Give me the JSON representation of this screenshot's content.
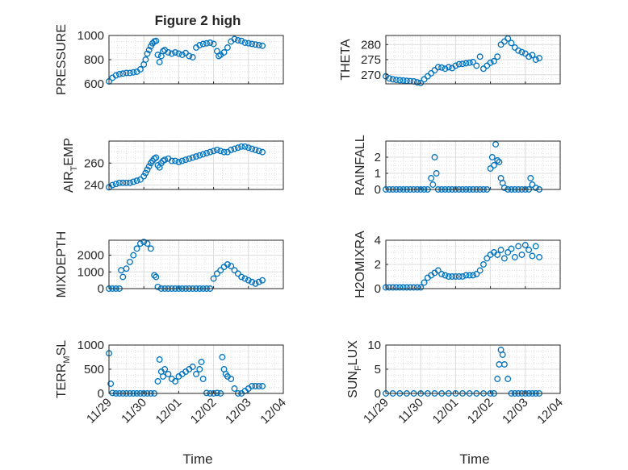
{
  "figure": {
    "title": "Figure 2 high",
    "marker_color": "#0072BD",
    "xlabel": "Time",
    "x_tick_labels": [
      "11/29",
      "11/30",
      "12/01",
      "12/02",
      "12/03",
      "12/04"
    ]
  },
  "chart_data": [
    {
      "type": "scatter",
      "panel": "pressure",
      "title": "Figure 2 high",
      "ylabel": "PRESSURE",
      "ylim": [
        600,
        1000
      ],
      "yticks": [
        600,
        800,
        1000
      ],
      "xlim": [
        0,
        5
      ],
      "grid": true,
      "x": [
        0,
        0.1,
        0.2,
        0.3,
        0.4,
        0.5,
        0.6,
        0.7,
        0.8,
        0.9,
        1.0,
        1.05,
        1.1,
        1.15,
        1.2,
        1.25,
        1.3,
        1.35,
        1.4,
        1.45,
        1.5,
        1.55,
        1.6,
        1.7,
        1.8,
        1.9,
        2.0,
        2.1,
        2.2,
        2.3,
        2.4,
        2.5,
        2.6,
        2.7,
        2.8,
        2.9,
        3.0,
        3.1,
        3.15,
        3.2,
        3.3,
        3.4,
        3.5,
        3.6,
        3.7,
        3.8,
        3.9,
        4.0,
        4.1,
        4.2,
        4.3,
        4.4
      ],
      "y": [
        620,
        650,
        670,
        680,
        685,
        690,
        690,
        695,
        700,
        720,
        760,
        800,
        850,
        880,
        910,
        935,
        950,
        955,
        840,
        780,
        830,
        870,
        880,
        860,
        850,
        860,
        850,
        840,
        855,
        830,
        820,
        900,
        920,
        930,
        935,
        940,
        930,
        870,
        830,
        840,
        860,
        900,
        950,
        970,
        960,
        955,
        940,
        935,
        930,
        925,
        920,
        915
      ]
    },
    {
      "type": "scatter",
      "panel": "theta",
      "ylabel": "THETA",
      "ylim": [
        267,
        283
      ],
      "yticks": [
        270,
        275,
        280
      ],
      "xlim": [
        0,
        5
      ],
      "grid": true,
      "x": [
        0,
        0.1,
        0.2,
        0.3,
        0.4,
        0.5,
        0.6,
        0.7,
        0.8,
        0.9,
        1.0,
        1.1,
        1.2,
        1.3,
        1.4,
        1.5,
        1.6,
        1.7,
        1.8,
        1.9,
        2.0,
        2.1,
        2.2,
        2.3,
        2.4,
        2.5,
        2.6,
        2.7,
        2.8,
        2.9,
        3.0,
        3.1,
        3.2,
        3.3,
        3.4,
        3.5,
        3.6,
        3.7,
        3.8,
        3.9,
        4.0,
        4.1,
        4.2,
        4.3,
        4.4
      ],
      "y": [
        269.5,
        268.8,
        268.5,
        268.3,
        268.2,
        268.1,
        268.0,
        267.9,
        267.8,
        267.5,
        267.3,
        268.5,
        269.5,
        270.5,
        271.5,
        272.5,
        272.4,
        272.0,
        272.5,
        272.2,
        273.0,
        273.5,
        273.6,
        273.8,
        274.0,
        274.2,
        273.0,
        276.0,
        272.0,
        273.0,
        274.0,
        274.5,
        276.0,
        280.0,
        281.0,
        282.0,
        280.5,
        279.0,
        278.0,
        277.5,
        277.0,
        276.0,
        276.5,
        275.0,
        275.5
      ]
    },
    {
      "type": "scatter",
      "panel": "air_temp",
      "ylabel": "AIR",
      "ylabel_sub": "T",
      "ylabel_tail": "EMP",
      "ylim": [
        236,
        280
      ],
      "yticks": [
        240,
        260
      ],
      "xlim": [
        0,
        5
      ],
      "grid": true,
      "x": [
        0,
        0.1,
        0.2,
        0.3,
        0.4,
        0.5,
        0.6,
        0.7,
        0.8,
        0.9,
        1.0,
        1.05,
        1.1,
        1.15,
        1.2,
        1.25,
        1.3,
        1.35,
        1.4,
        1.45,
        1.5,
        1.55,
        1.6,
        1.7,
        1.8,
        1.9,
        2.0,
        2.1,
        2.2,
        2.3,
        2.4,
        2.5,
        2.6,
        2.7,
        2.8,
        2.9,
        3.0,
        3.1,
        3.2,
        3.3,
        3.4,
        3.5,
        3.6,
        3.7,
        3.8,
        3.9,
        4.0,
        4.1,
        4.2,
        4.3,
        4.4
      ],
      "y": [
        238,
        240,
        241,
        242,
        242,
        242,
        242,
        243,
        244,
        245,
        248,
        251,
        254,
        257,
        260,
        262,
        264,
        265,
        258,
        256,
        260,
        262,
        263,
        264,
        262,
        262,
        261,
        262,
        263,
        264,
        265,
        266,
        267,
        268,
        269,
        270,
        271,
        272,
        271,
        270,
        270,
        272,
        273,
        274,
        275,
        275,
        274,
        273,
        272,
        271,
        270
      ]
    },
    {
      "type": "scatter",
      "panel": "rainfall",
      "ylabel": "RAINFALL",
      "ylim": [
        0,
        3
      ],
      "yticks": [
        0,
        1,
        2
      ],
      "xlim": [
        0,
        5
      ],
      "grid": true,
      "x": [
        0,
        0.1,
        0.2,
        0.3,
        0.4,
        0.5,
        0.6,
        0.7,
        0.8,
        0.9,
        1.0,
        1.1,
        1.2,
        1.3,
        1.35,
        1.4,
        1.45,
        1.5,
        1.6,
        1.7,
        1.8,
        1.9,
        2.0,
        2.1,
        2.2,
        2.3,
        2.4,
        2.5,
        2.6,
        2.7,
        2.8,
        2.9,
        3.0,
        3.05,
        3.1,
        3.15,
        3.2,
        3.25,
        3.3,
        3.35,
        3.4,
        3.5,
        3.6,
        3.7,
        3.8,
        3.9,
        4.0,
        4.1,
        4.15,
        4.2,
        4.3,
        4.4
      ],
      "y": [
        0,
        0,
        0,
        0,
        0,
        0,
        0,
        0,
        0,
        0,
        0,
        0,
        0,
        0.7,
        0.3,
        2.0,
        1.0,
        0,
        0,
        0,
        0,
        0,
        0,
        0,
        0,
        0,
        0,
        0,
        0,
        0,
        0,
        0,
        1.3,
        2.0,
        1.5,
        2.8,
        1.8,
        1.7,
        0.7,
        0.4,
        0.1,
        0,
        0,
        0,
        0,
        0,
        0,
        0,
        0.7,
        0.3,
        0.1,
        0
      ]
    },
    {
      "type": "scatter",
      "panel": "mixdepth",
      "ylabel": "MIXDEPTH",
      "ylim": [
        0,
        2900
      ],
      "yticks": [
        0,
        1000,
        2000
      ],
      "xlim": [
        0,
        5
      ],
      "grid": true,
      "x": [
        0,
        0.1,
        0.2,
        0.3,
        0.35,
        0.4,
        0.5,
        0.6,
        0.7,
        0.8,
        0.9,
        1.0,
        1.1,
        1.2,
        1.3,
        1.35,
        1.4,
        1.5,
        1.6,
        1.7,
        1.8,
        1.9,
        2.0,
        2.1,
        2.2,
        2.3,
        2.4,
        2.5,
        2.6,
        2.7,
        2.8,
        2.9,
        3.0,
        3.1,
        3.2,
        3.3,
        3.4,
        3.5,
        3.6,
        3.7,
        3.8,
        3.9,
        4.0,
        4.1,
        4.2,
        4.3,
        4.4
      ],
      "y": [
        0,
        0,
        0,
        0,
        1100,
        700,
        1200,
        1600,
        2000,
        2400,
        2700,
        2800,
        2700,
        2400,
        800,
        700,
        100,
        0,
        0,
        0,
        0,
        0,
        0,
        0,
        0,
        0,
        0,
        0,
        0,
        0,
        0,
        0,
        600,
        900,
        1100,
        1300,
        1450,
        1350,
        1100,
        900,
        700,
        600,
        500,
        400,
        300,
        400,
        500
      ]
    },
    {
      "type": "scatter",
      "panel": "h2omixra",
      "ylabel": "H2OMIXRA",
      "ylim": [
        0,
        4
      ],
      "yticks": [
        0,
        2,
        4
      ],
      "xlim": [
        0,
        5
      ],
      "grid": true,
      "x": [
        0,
        0.1,
        0.2,
        0.3,
        0.4,
        0.5,
        0.6,
        0.7,
        0.8,
        0.9,
        1.0,
        1.1,
        1.2,
        1.3,
        1.4,
        1.5,
        1.6,
        1.7,
        1.8,
        1.9,
        2.0,
        2.1,
        2.2,
        2.3,
        2.4,
        2.5,
        2.6,
        2.7,
        2.8,
        2.9,
        3.0,
        3.1,
        3.2,
        3.3,
        3.4,
        3.5,
        3.6,
        3.7,
        3.8,
        3.9,
        4.0,
        4.1,
        4.2,
        4.3,
        4.4
      ],
      "y": [
        0.1,
        0.1,
        0.1,
        0.1,
        0.1,
        0.1,
        0.1,
        0.1,
        0.1,
        0.1,
        0.1,
        0.5,
        0.9,
        1.1,
        1.3,
        1.5,
        1.2,
        1.1,
        1.0,
        1.0,
        1.0,
        1.0,
        1.0,
        1.1,
        1.1,
        1.1,
        1.2,
        1.5,
        2.0,
        2.5,
        2.8,
        3.0,
        2.8,
        3.2,
        2.5,
        3.0,
        3.3,
        2.6,
        3.5,
        2.8,
        3.6,
        3.2,
        2.7,
        3.5,
        2.6
      ]
    },
    {
      "type": "scatter",
      "panel": "terr_msl",
      "ylabel": "TERR",
      "ylabel_sub": "M",
      "ylabel_tail": "SL",
      "ylim": [
        0,
        1000
      ],
      "yticks": [
        0,
        500,
        1000
      ],
      "xlim": [
        0,
        5
      ],
      "grid": true,
      "x": [
        0,
        0.05,
        0.1,
        0.2,
        0.3,
        0.4,
        0.5,
        0.6,
        0.7,
        0.8,
        0.9,
        1.0,
        1.1,
        1.2,
        1.3,
        1.4,
        1.45,
        1.5,
        1.55,
        1.6,
        1.7,
        1.8,
        1.9,
        2.0,
        2.1,
        2.2,
        2.3,
        2.4,
        2.5,
        2.6,
        2.65,
        2.7,
        2.8,
        2.9,
        3.0,
        3.1,
        3.2,
        3.25,
        3.3,
        3.35,
        3.4,
        3.5,
        3.6,
        3.7,
        3.8,
        3.9,
        4.0,
        4.1,
        4.2,
        4.3,
        4.4
      ],
      "y": [
        830,
        200,
        10,
        0,
        0,
        0,
        0,
        0,
        0,
        0,
        0,
        0,
        0,
        0,
        0,
        250,
        700,
        450,
        350,
        500,
        400,
        300,
        250,
        350,
        400,
        450,
        500,
        550,
        400,
        500,
        650,
        300,
        10,
        0,
        0,
        10,
        0,
        750,
        500,
        400,
        350,
        300,
        100,
        0,
        0,
        50,
        100,
        150,
        150,
        150,
        150
      ]
    },
    {
      "type": "scatter",
      "panel": "sun_flux",
      "ylabel": "SUN",
      "ylabel_sub": "F",
      "ylabel_tail": "LUX",
      "ylim": [
        0,
        10
      ],
      "yticks": [
        0,
        5,
        10
      ],
      "xlim": [
        0,
        5
      ],
      "grid": true,
      "x": [
        0,
        0.2,
        0.4,
        0.6,
        0.8,
        1.0,
        1.2,
        1.4,
        1.6,
        1.8,
        2.0,
        2.2,
        2.4,
        2.6,
        2.8,
        3.0,
        3.1,
        3.2,
        3.25,
        3.3,
        3.35,
        3.4,
        3.5,
        3.6,
        3.7,
        3.8,
        3.9,
        4.0,
        4.1,
        4.2,
        4.3,
        4.4
      ],
      "y": [
        0,
        0,
        0,
        0,
        0,
        0,
        0,
        0,
        0,
        0,
        0,
        0,
        0,
        0,
        0,
        0,
        0,
        3,
        6,
        9,
        8,
        6,
        3,
        0,
        0,
        0,
        0,
        0,
        0,
        0,
        0,
        0
      ]
    }
  ]
}
